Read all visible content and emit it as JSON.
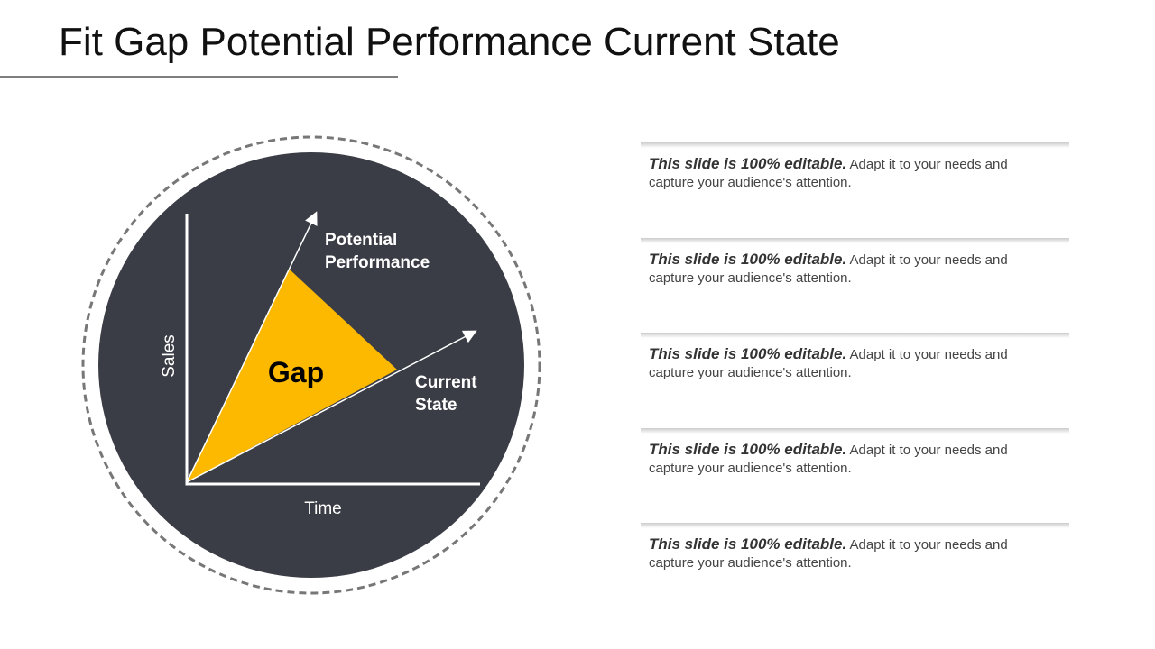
{
  "header": {
    "title": "Fit Gap Potential Performance Current State"
  },
  "diagram": {
    "y_axis": "Sales",
    "x_axis": "Time",
    "upper_line": "Potential Performance",
    "lower_line": "Current State",
    "area": "Gap"
  },
  "notes": [
    {
      "bold": "This slide is 100% editable.",
      "text": "Adapt it to your needs and capture your audience's attention."
    },
    {
      "bold": "This slide is 100% editable.",
      "text": "Adapt it to your needs and capture your audience's attention."
    },
    {
      "bold": "This slide is 100% editable.",
      "text": "Adapt it to your needs and capture your audience's attention."
    },
    {
      "bold": "This slide is 100% editable.",
      "text": "Adapt it to your needs and capture your audience's attention."
    },
    {
      "bold": "This slide is 100% editable.",
      "text": "Adapt it to your needs and capture your audience's attention."
    }
  ]
}
